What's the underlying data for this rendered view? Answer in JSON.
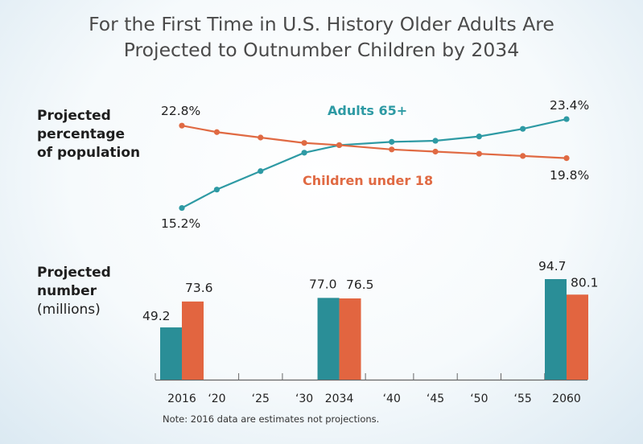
{
  "title_lines": [
    "For the First Time in U.S. History Older Adults Are",
    "Projected to Outnumber Children by 2034"
  ],
  "line_panel_label": [
    "Projected",
    "percentage",
    "of population"
  ],
  "bar_panel_label": [
    "Projected",
    "number",
    "(millions)"
  ],
  "note": "Note: 2016 data are estimates not projections.",
  "colors": {
    "adults": "#2e9aa4",
    "children": "#e06a43",
    "bar_adults": "#2a8e97",
    "bar_children": "#e26540",
    "axis": "#666666"
  },
  "chart_data": [
    {
      "type": "line",
      "x": [
        2016,
        2020,
        2025,
        2030,
        2034,
        2040,
        2045,
        2050,
        2055,
        2060
      ],
      "series": [
        {
          "name": "Adults 65+",
          "values": [
            15.2,
            16.9,
            18.6,
            20.3,
            21.0,
            21.3,
            21.4,
            21.8,
            22.5,
            23.4
          ],
          "end_labels": [
            "15.2%",
            "23.4%"
          ]
        },
        {
          "name": "Children under 18",
          "values": [
            22.8,
            22.2,
            21.7,
            21.2,
            21.0,
            20.6,
            20.4,
            20.2,
            20.0,
            19.8
          ],
          "end_labels": [
            "22.8%",
            "19.8%"
          ]
        }
      ],
      "ylim": [
        14.5,
        24.0
      ]
    },
    {
      "type": "bar",
      "categories": [
        "2016",
        "‘20",
        "‘25",
        "‘30",
        "2034",
        "‘40",
        "‘45",
        "‘50",
        "‘55",
        "2060"
      ],
      "series": [
        {
          "name": "Adults 65+",
          "values": [
            49.2,
            null,
            null,
            null,
            77.0,
            null,
            null,
            null,
            null,
            94.7
          ],
          "labels": [
            "49.2",
            "",
            "",
            "",
            "77.0",
            "",
            "",
            "",
            "",
            "94.7"
          ]
        },
        {
          "name": "Children under 18",
          "values": [
            73.6,
            null,
            null,
            null,
            76.5,
            null,
            null,
            null,
            null,
            80.1
          ],
          "labels": [
            "73.6",
            "",
            "",
            "",
            "76.5",
            "",
            "",
            "",
            "",
            "80.1"
          ]
        }
      ],
      "ylim": [
        0,
        100
      ]
    }
  ]
}
